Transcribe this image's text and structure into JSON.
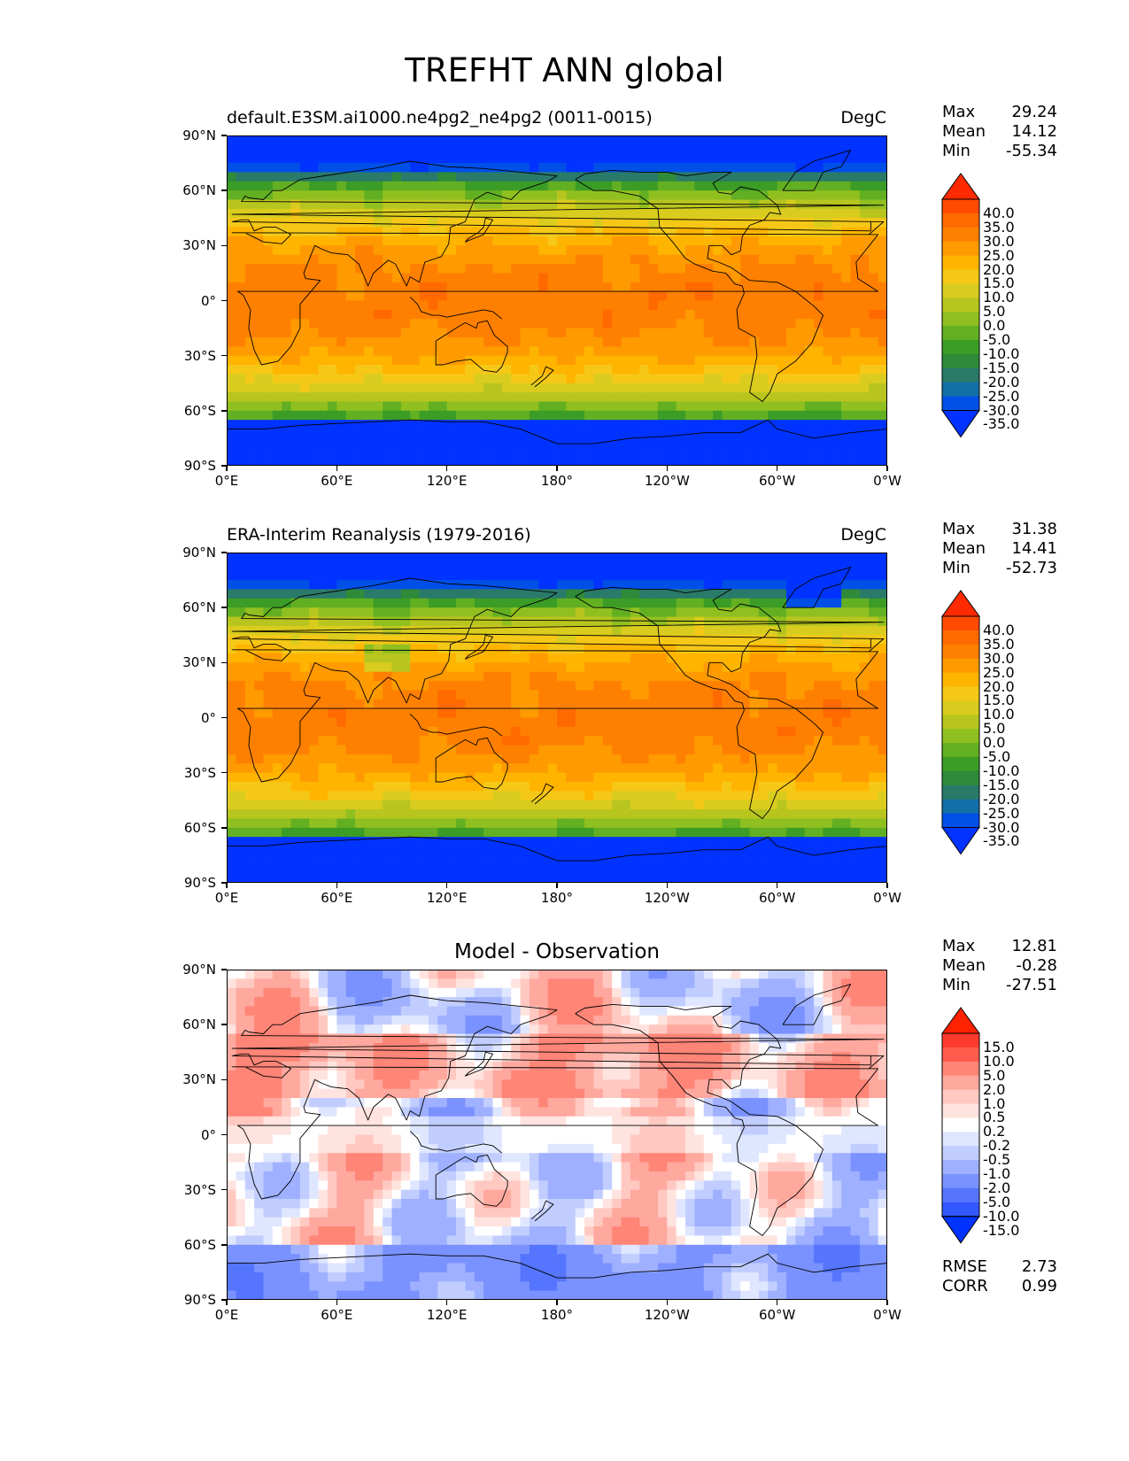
{
  "figure": {
    "title": "TREFHT ANN global"
  },
  "axes": {
    "lat_labels": [
      "90°N",
      "60°N",
      "30°N",
      "0°",
      "30°S",
      "60°S",
      "90°S"
    ],
    "lon_labels": [
      "0°E",
      "60°E",
      "120°E",
      "180°",
      "120°W",
      "60°W",
      "0°W"
    ]
  },
  "chart_data": [
    {
      "type": "heatmap",
      "title": "default.E3SM.ai1000.ne4pg2_ne4pg2 (0011-0015)",
      "units": "DegC",
      "stats": {
        "max_label": "Max",
        "max": "29.24",
        "mean_label": "Mean",
        "mean": "14.12",
        "min_label": "Min",
        "min": "-55.34"
      },
      "colorbar": {
        "levels": [
          "40.0",
          "35.0",
          "30.0",
          "25.0",
          "20.0",
          "15.0",
          "10.0",
          "5.0",
          "0.0",
          "-5.0",
          "-10.0",
          "-15.0",
          "-20.0",
          "-25.0",
          "-30.0",
          "-35.0"
        ],
        "colors": [
          "#ff2a00",
          "#ff4a00",
          "#ff6a00",
          "#ff8000",
          "#ff9a00",
          "#ffb400",
          "#f5c818",
          "#d9cc1e",
          "#b8c51f",
          "#90bf20",
          "#62b022",
          "#3b9c26",
          "#2f8a3a",
          "#2a7a6a",
          "#146fa8",
          "#0050e8",
          "#0033ff"
        ]
      },
      "xlim": [
        0,
        360
      ],
      "ylim": [
        -90,
        90
      ]
    },
    {
      "type": "heatmap",
      "title": "ERA-Interim Reanalysis (1979-2016)",
      "units": "DegC",
      "stats": {
        "max_label": "Max",
        "max": "31.38",
        "mean_label": "Mean",
        "mean": "14.41",
        "min_label": "Min",
        "min": "-52.73"
      },
      "colorbar": {
        "levels": [
          "40.0",
          "35.0",
          "30.0",
          "25.0",
          "20.0",
          "15.0",
          "10.0",
          "5.0",
          "0.0",
          "-5.0",
          "-10.0",
          "-15.0",
          "-20.0",
          "-25.0",
          "-30.0",
          "-35.0"
        ],
        "colors": [
          "#ff2a00",
          "#ff4a00",
          "#ff6a00",
          "#ff8000",
          "#ff9a00",
          "#ffb400",
          "#f5c818",
          "#d9cc1e",
          "#b8c51f",
          "#90bf20",
          "#62b022",
          "#3b9c26",
          "#2f8a3a",
          "#2a7a6a",
          "#146fa8",
          "#0050e8",
          "#0033ff"
        ]
      },
      "xlim": [
        0,
        360
      ],
      "ylim": [
        -90,
        90
      ]
    },
    {
      "type": "heatmap",
      "title": "Model - Observation",
      "units": "",
      "stats": {
        "max_label": "Max",
        "max": "12.81",
        "mean_label": "Mean",
        "mean": "-0.28",
        "min_label": "Min",
        "min": "-27.51"
      },
      "metrics": {
        "rmse_label": "RMSE",
        "rmse": "2.73",
        "corr_label": "CORR",
        "corr": "0.99"
      },
      "colorbar": {
        "levels": [
          "15.0",
          "10.0",
          "5.0",
          "2.0",
          "1.0",
          "0.5",
          "0.2",
          "-0.2",
          "-0.5",
          "-1.0",
          "-2.0",
          "-5.0",
          "-10.0",
          "-15.0"
        ],
        "colors": [
          "#ff2200",
          "#ff3b2e",
          "#ff5c4d",
          "#ff8577",
          "#ffa89e",
          "#ffc9c2",
          "#ffe3df",
          "#ffffff",
          "#dfe6ff",
          "#c2cdff",
          "#9eb0ff",
          "#7a92ff",
          "#5575ff",
          "#3358ff",
          "#0033ff"
        ]
      },
      "xlim": [
        0,
        360
      ],
      "ylim": [
        -90,
        90
      ]
    }
  ]
}
